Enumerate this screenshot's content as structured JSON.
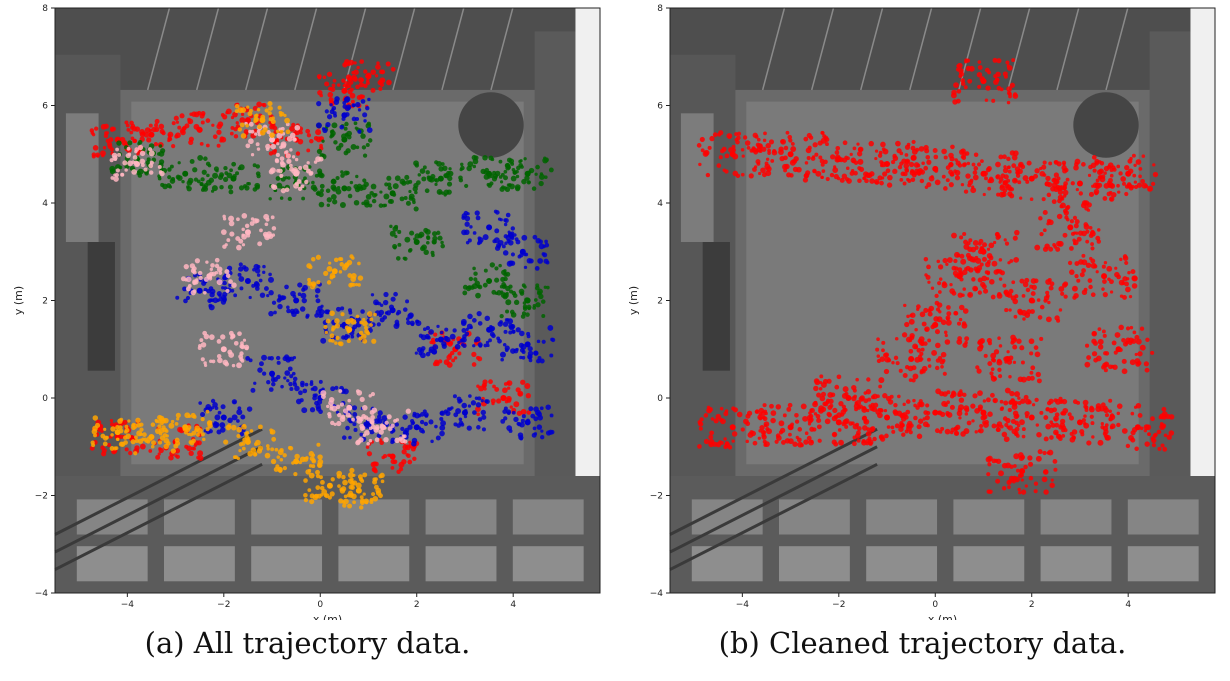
{
  "chart_data": [
    {
      "type": "scatter",
      "caption": "(a) All trajectory data.",
      "xlabel": "x (m)",
      "ylabel": "y (m)",
      "xticks": [
        -4,
        -2,
        0,
        2,
        4
      ],
      "yticks": [
        -4,
        -2,
        0,
        2,
        4,
        6,
        8
      ],
      "xlim": [
        -5.5,
        5.8
      ],
      "ylim": [
        -4,
        8
      ],
      "grid": false,
      "background": "overhead grayscale camera image of atrium",
      "series": [
        {
          "color": "#ff0000",
          "points": [
            [
              -4.2,
              5.3
            ],
            [
              -3.5,
              5.4
            ],
            [
              -2.5,
              5.5
            ],
            [
              -1.5,
              5.7
            ],
            [
              0.5,
              6.3
            ],
            [
              1.0,
              6.6
            ],
            [
              -4.2,
              -0.8
            ],
            [
              -3.0,
              -0.9
            ],
            [
              1.5,
              -1.2
            ],
            [
              3.8,
              0.0
            ],
            [
              2.8,
              1.0
            ],
            [
              -0.5,
              5.3
            ]
          ]
        },
        {
          "color": "#006400",
          "points": [
            [
              -3.8,
              4.9
            ],
            [
              -2.8,
              4.6
            ],
            [
              -1.8,
              4.5
            ],
            [
              -0.5,
              4.4
            ],
            [
              0.5,
              4.3
            ],
            [
              1.5,
              4.2
            ],
            [
              2.5,
              4.5
            ],
            [
              3.5,
              4.6
            ],
            [
              4.3,
              4.6
            ],
            [
              2.0,
              3.2
            ],
            [
              3.5,
              2.4
            ],
            [
              4.3,
              2.0
            ],
            [
              0.5,
              5.3
            ]
          ]
        },
        {
          "color": "#0000cd",
          "points": [
            [
              -2.5,
              2.2
            ],
            [
              -1.5,
              2.4
            ],
            [
              -0.5,
              2.0
            ],
            [
              0.5,
              1.5
            ],
            [
              1.5,
              1.8
            ],
            [
              2.5,
              1.2
            ],
            [
              3.5,
              1.4
            ],
            [
              4.3,
              1.1
            ],
            [
              -1.0,
              0.5
            ],
            [
              0.0,
              0.0
            ],
            [
              1.0,
              -0.5
            ],
            [
              2.0,
              -0.6
            ],
            [
              3.0,
              -0.3
            ],
            [
              4.3,
              -0.5
            ],
            [
              -2.0,
              -0.4
            ],
            [
              0.5,
              5.8
            ],
            [
              3.5,
              3.5
            ],
            [
              4.2,
              3.0
            ]
          ]
        },
        {
          "color": "#ffb6c1",
          "points": [
            [
              -1.0,
              5.3
            ],
            [
              -0.5,
              4.6
            ],
            [
              -2.3,
              2.5
            ],
            [
              -2.0,
              1.0
            ],
            [
              0.6,
              -0.2
            ],
            [
              1.3,
              -0.6
            ],
            [
              -3.8,
              4.8
            ],
            [
              -1.5,
              3.4
            ]
          ]
        },
        {
          "color": "#ffa500",
          "points": [
            [
              -4.2,
              -0.7
            ],
            [
              -3.5,
              -0.8
            ],
            [
              -2.8,
              -0.6
            ],
            [
              -1.5,
              -0.9
            ],
            [
              -0.5,
              -1.3
            ],
            [
              0.2,
              -1.8
            ],
            [
              0.8,
              -1.9
            ],
            [
              -1.2,
              5.7
            ],
            [
              0.3,
              2.6
            ],
            [
              0.6,
              1.4
            ]
          ]
        }
      ]
    },
    {
      "type": "scatter",
      "caption": "(b) Cleaned trajectory data.",
      "xlabel": "x (m)",
      "ylabel": "y (m)",
      "xticks": [
        -4,
        -2,
        0,
        2,
        4
      ],
      "yticks": [
        -4,
        -2,
        0,
        2,
        4,
        6,
        8
      ],
      "xlim": [
        -5.5,
        5.8
      ],
      "ylim": [
        -4,
        8
      ],
      "grid": false,
      "background": "overhead grayscale camera image of atrium",
      "series": [
        {
          "color": "#ff0000",
          "points": [
            [
              -4.2,
              5.0
            ],
            [
              -3.0,
              5.0
            ],
            [
              -2.0,
              4.9
            ],
            [
              -1.0,
              4.8
            ],
            [
              0.0,
              4.7
            ],
            [
              1.0,
              4.6
            ],
            [
              2.0,
              4.5
            ],
            [
              3.0,
              4.4
            ],
            [
              4.0,
              4.6
            ],
            [
              1.0,
              6.5
            ],
            [
              -4.2,
              -0.6
            ],
            [
              -3.0,
              -0.6
            ],
            [
              -2.0,
              -0.5
            ],
            [
              -1.0,
              -0.4
            ],
            [
              0.0,
              -0.3
            ],
            [
              1.0,
              -0.3
            ],
            [
              2.0,
              -0.4
            ],
            [
              3.0,
              -0.5
            ],
            [
              4.2,
              -0.6
            ],
            [
              3.5,
              2.5
            ],
            [
              3.8,
              1.0
            ],
            [
              2.0,
              2.0
            ],
            [
              1.0,
              3.0
            ],
            [
              0.0,
              1.5
            ],
            [
              -0.5,
              0.8
            ],
            [
              1.5,
              0.8
            ],
            [
              2.8,
              3.5
            ],
            [
              0.5,
              2.5
            ],
            [
              1.8,
              -1.5
            ],
            [
              -1.8,
              0.0
            ]
          ]
        }
      ]
    }
  ]
}
